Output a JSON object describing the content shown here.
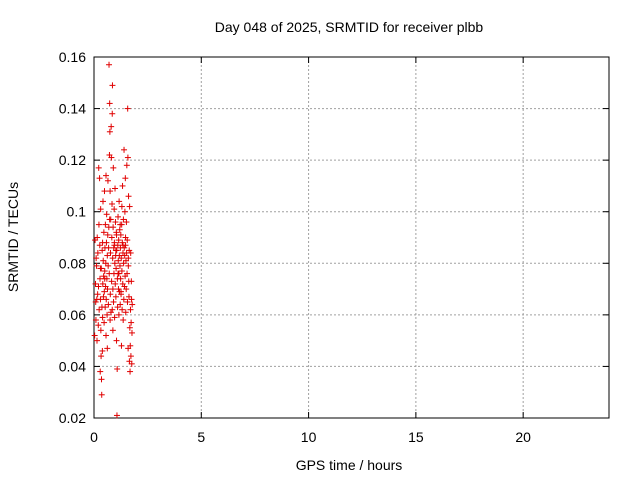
{
  "chart_data": {
    "type": "scatter",
    "title": "Day 048 of 2025, SRMTID for receiver plbb",
    "xlabel": "GPS time / hours",
    "ylabel": "SRMTID / TECUs",
    "xlim": [
      0,
      24
    ],
    "ylim": [
      0.02,
      0.16
    ],
    "xticks": [
      0,
      5,
      10,
      15,
      20
    ],
    "xtick_labels": [
      "0",
      "5",
      "10",
      "15",
      "20"
    ],
    "yticks": [
      0.02,
      0.04,
      0.06,
      0.08,
      0.1,
      0.12,
      0.14,
      0.16
    ],
    "ytick_labels": [
      "0.02",
      "0.04",
      "0.06",
      "0.08",
      "0.1",
      "0.12",
      "0.14",
      "0.16"
    ],
    "grid": true,
    "marker": "+",
    "color": "#e00000",
    "series": [
      {
        "name": "plbb",
        "points": [
          [
            0.03,
            0.052
          ],
          [
            0.05,
            0.089
          ],
          [
            0.07,
            0.072
          ],
          [
            0.08,
            0.065
          ],
          [
            0.09,
            0.058
          ],
          [
            0.1,
            0.082
          ],
          [
            0.12,
            0.079
          ],
          [
            0.13,
            0.066
          ],
          [
            0.14,
            0.05
          ],
          [
            0.15,
            0.09
          ],
          [
            0.17,
            0.068
          ],
          [
            0.18,
            0.084
          ],
          [
            0.2,
            0.056
          ],
          [
            0.21,
            0.071
          ],
          [
            0.22,
            0.117
          ],
          [
            0.23,
            0.095
          ],
          [
            0.24,
            0.062
          ],
          [
            0.26,
            0.113
          ],
          [
            0.27,
            0.087
          ],
          [
            0.28,
            0.074
          ],
          [
            0.29,
            0.038
          ],
          [
            0.3,
            0.066
          ],
          [
            0.31,
            0.101
          ],
          [
            0.32,
            0.054
          ],
          [
            0.33,
            0.044
          ],
          [
            0.34,
            0.078
          ],
          [
            0.35,
            0.035
          ],
          [
            0.36,
            0.029
          ],
          [
            0.37,
            0.063
          ],
          [
            0.38,
            0.085
          ],
          [
            0.39,
            0.046
          ],
          [
            0.4,
            0.059
          ],
          [
            0.41,
            0.072
          ],
          [
            0.42,
            0.104
          ],
          [
            0.43,
            0.081
          ],
          [
            0.44,
            0.067
          ],
          [
            0.45,
            0.075
          ],
          [
            0.46,
            0.092
          ],
          [
            0.47,
            0.057
          ],
          [
            0.48,
            0.069
          ],
          [
            0.49,
            0.108
          ],
          [
            0.5,
            0.077
          ],
          [
            0.51,
            0.086
          ],
          [
            0.52,
            0.063
          ],
          [
            0.53,
            0.095
          ],
          [
            0.54,
            0.071
          ],
          [
            0.55,
            0.08
          ],
          [
            0.56,
            0.114
          ],
          [
            0.57,
            0.066
          ],
          [
            0.58,
            0.088
          ],
          [
            0.59,
            0.099
          ],
          [
            0.6,
            0.074
          ],
          [
            0.61,
            0.06
          ],
          [
            0.62,
            0.083
          ],
          [
            0.63,
            0.07
          ],
          [
            0.64,
            0.091
          ],
          [
            0.65,
            0.112
          ],
          [
            0.66,
            0.079
          ],
          [
            0.67,
            0.064
          ],
          [
            0.68,
            0.086
          ],
          [
            0.69,
            0.094
          ],
          [
            0.7,
            0.157
          ],
          [
            0.71,
            0.076
          ],
          [
            0.72,
            0.122
          ],
          [
            0.73,
            0.142
          ],
          [
            0.74,
            0.131
          ],
          [
            0.75,
            0.108
          ],
          [
            0.76,
            0.068
          ],
          [
            0.77,
            0.084
          ],
          [
            0.78,
            0.097
          ],
          [
            0.79,
            0.061
          ],
          [
            0.8,
            0.133
          ],
          [
            0.81,
            0.121
          ],
          [
            0.82,
            0.073
          ],
          [
            0.83,
            0.09
          ],
          [
            0.84,
            0.103
          ],
          [
            0.85,
            0.138
          ],
          [
            0.86,
            0.149
          ],
          [
            0.87,
            0.082
          ],
          [
            0.88,
            0.07
          ],
          [
            0.89,
            0.094
          ],
          [
            0.9,
            0.117
          ],
          [
            0.91,
            0.065
          ],
          [
            0.92,
            0.086
          ],
          [
            0.93,
            0.076
          ],
          [
            0.94,
            0.101
          ],
          [
            0.95,
            0.088
          ],
          [
            0.96,
            0.059
          ],
          [
            0.97,
            0.08
          ],
          [
            0.98,
            0.109
          ],
          [
            0.99,
            0.072
          ],
          [
            1.0,
            0.096
          ],
          [
            1.01,
            0.083
          ],
          [
            1.02,
            0.067
          ],
          [
            1.03,
            0.078
          ],
          [
            1.04,
            0.092
          ],
          [
            1.05,
            0.05
          ],
          [
            1.06,
            0.085
          ],
          [
            1.07,
            0.021
          ],
          [
            1.08,
            0.039
          ],
          [
            1.09,
            0.074
          ],
          [
            1.1,
            0.063
          ],
          [
            1.11,
            0.087
          ],
          [
            1.12,
            0.098
          ],
          [
            1.13,
            0.081
          ],
          [
            1.14,
            0.07
          ],
          [
            1.15,
            0.089
          ],
          [
            1.16,
            0.076
          ],
          [
            1.17,
            0.104
          ],
          [
            1.18,
            0.083
          ],
          [
            1.19,
            0.069
          ],
          [
            1.2,
            0.093
          ],
          [
            1.21,
            0.079
          ],
          [
            1.22,
            0.064
          ],
          [
            1.23,
            0.086
          ],
          [
            1.24,
            0.074
          ],
          [
            1.25,
            0.091
          ],
          [
            1.26,
            0.068
          ],
          [
            1.27,
            0.082
          ],
          [
            1.28,
            0.048
          ],
          [
            1.29,
            0.095
          ],
          [
            1.3,
            0.077
          ],
          [
            1.31,
            0.062
          ],
          [
            1.32,
            0.088
          ],
          [
            1.33,
            0.11
          ],
          [
            1.34,
            0.072
          ],
          [
            1.35,
            0.084
          ],
          [
            1.36,
            0.058
          ],
          [
            1.37,
            0.097
          ],
          [
            1.38,
            0.08
          ],
          [
            1.39,
            0.066
          ],
          [
            1.4,
            0.124
          ],
          [
            1.41,
            0.086
          ],
          [
            1.42,
            0.071
          ],
          [
            1.43,
            0.083
          ],
          [
            1.44,
            0.1
          ],
          [
            1.45,
            0.075
          ],
          [
            1.46,
            0.113
          ],
          [
            1.47,
            0.087
          ],
          [
            1.48,
            0.061
          ],
          [
            1.49,
            0.081
          ],
          [
            1.5,
            0.07
          ],
          [
            1.51,
            0.096
          ],
          [
            1.52,
            0.084
          ],
          [
            1.53,
            0.118
          ],
          [
            1.54,
            0.076
          ],
          [
            1.55,
            0.089
          ],
          [
            1.56,
            0.065
          ],
          [
            1.57,
            0.14
          ],
          [
            1.58,
            0.121
          ],
          [
            1.59,
            0.047
          ],
          [
            1.6,
            0.082
          ],
          [
            1.61,
            0.106
          ],
          [
            1.62,
            0.073
          ],
          [
            1.63,
            0.067
          ],
          [
            1.64,
            0.085
          ],
          [
            1.65,
            0.042
          ],
          [
            1.66,
            0.102
          ],
          [
            1.67,
            0.055
          ],
          [
            1.68,
            0.038
          ],
          [
            1.69,
            0.048
          ],
          [
            1.7,
            0.062
          ],
          [
            1.71,
            0.084
          ],
          [
            1.72,
            0.044
          ],
          [
            1.73,
            0.057
          ],
          [
            1.74,
            0.073
          ],
          [
            1.75,
            0.066
          ],
          [
            1.76,
            0.041
          ],
          [
            1.77,
            0.053
          ],
          [
            1.78,
            0.064
          ],
          [
            0.56,
            0.052
          ],
          [
            0.62,
            0.047
          ],
          [
            0.73,
            0.097
          ],
          [
            0.88,
            0.054
          ],
          [
            1.02,
            0.085
          ],
          [
            1.16,
            0.06
          ],
          [
            1.26,
            0.069
          ],
          [
            1.35,
            0.087
          ],
          [
            1.47,
            0.09
          ],
          [
            1.6,
            0.079
          ],
          [
            0.95,
            0.087
          ],
          [
            1.05,
            0.091
          ],
          [
            1.12,
            0.076
          ],
          [
            1.22,
            0.095
          ],
          [
            1.3,
            0.102
          ],
          [
            0.85,
            0.062
          ],
          [
            0.75,
            0.058
          ],
          [
            0.5,
            0.074
          ],
          [
            0.4,
            0.088
          ],
          [
            0.3,
            0.078
          ]
        ]
      }
    ]
  }
}
